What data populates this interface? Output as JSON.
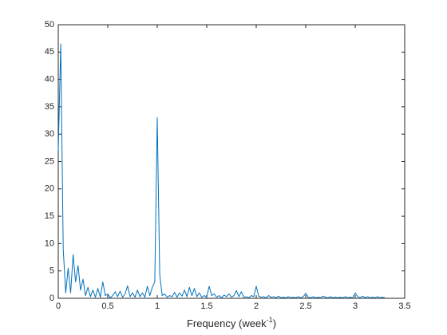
{
  "chart_data": {
    "type": "line",
    "xlabel": [
      "Frequency  (week",
      "-1",
      ")"
    ],
    "x": [
      0,
      0.025,
      0.05,
      0.075,
      0.1,
      0.125,
      0.15,
      0.175,
      0.2,
      0.225,
      0.25,
      0.275,
      0.3,
      0.325,
      0.35,
      0.375,
      0.4,
      0.425,
      0.45,
      0.475,
      0.5,
      0.525,
      0.55,
      0.575,
      0.6,
      0.625,
      0.65,
      0.675,
      0.7,
      0.725,
      0.75,
      0.775,
      0.8,
      0.825,
      0.85,
      0.875,
      0.9,
      0.925,
      0.95,
      0.975,
      1,
      1.025,
      1.05,
      1.075,
      1.1,
      1.125,
      1.15,
      1.175,
      1.2,
      1.225,
      1.25,
      1.275,
      1.3,
      1.325,
      1.35,
      1.375,
      1.4,
      1.425,
      1.45,
      1.475,
      1.5,
      1.525,
      1.55,
      1.575,
      1.6,
      1.625,
      1.65,
      1.675,
      1.7,
      1.725,
      1.75,
      1.775,
      1.8,
      1.825,
      1.85,
      1.875,
      1.9,
      1.925,
      1.95,
      1.975,
      2,
      2.025,
      2.05,
      2.075,
      2.1,
      2.125,
      2.15,
      2.175,
      2.2,
      2.225,
      2.25,
      2.275,
      2.3,
      2.325,
      2.35,
      2.375,
      2.4,
      2.425,
      2.45,
      2.475,
      2.5,
      2.525,
      2.55,
      2.575,
      2.6,
      2.625,
      2.65,
      2.675,
      2.7,
      2.725,
      2.75,
      2.775,
      2.8,
      2.825,
      2.85,
      2.875,
      2.9,
      2.925,
      2.95,
      2.975,
      3,
      3.025,
      3.05,
      3.075,
      3.1,
      3.125,
      3.15,
      3.175,
      3.2,
      3.225,
      3.25,
      3.275,
      3.3
    ],
    "values": [
      27,
      46.5,
      9,
      1,
      5.5,
      1,
      8,
      3,
      6,
      1.5,
      3.5,
      0.5,
      2,
      0.3,
      1.5,
      0.2,
      1.8,
      0.2,
      3,
      0.5,
      0.8,
      0.1,
      0.5,
      1.2,
      0.3,
      1.3,
      0.2,
      0.8,
      2.3,
      0.3,
      1,
      0.2,
      1.5,
      0.3,
      1,
      0.2,
      2.2,
      0.5,
      2,
      3,
      33,
      4.3,
      0.5,
      0.8,
      0.2,
      0.5,
      0.3,
      1.1,
      0.2,
      1,
      0.4,
      1.5,
      0.3,
      2,
      0.5,
      1.8,
      0.3,
      1,
      0.2,
      0.5,
      0.2,
      2.2,
      0.5,
      0.8,
      0.2,
      0.5,
      0.1,
      0.6,
      0.3,
      0.8,
      0.2,
      0.5,
      1.4,
      0.3,
      1.2,
      0.2,
      0.3,
      0.1,
      0.5,
      0.3,
      2.2,
      0.4,
      0.2,
      0.3,
      0.1,
      0.5,
      0.2,
      0.3,
      0.1,
      0.4,
      0.1,
      0.2,
      0.1,
      0.3,
      0.1,
      0.2,
      0.1,
      0.3,
      0.1,
      0.3,
      0.9,
      0.2,
      0.1,
      0.3,
      0.1,
      0.2,
      0.1,
      0.4,
      0.2,
      0.1,
      0.3,
      0.1,
      0.2,
      0.1,
      0.2,
      0.1,
      0.3,
      0.1,
      0.2,
      0.1,
      1,
      0.3,
      0.1,
      0.4,
      0.1,
      0.3,
      0.1,
      0.2,
      0.1,
      0.3,
      0.1,
      0.2,
      0.1
    ],
    "color": "#0072bd",
    "xlim": [
      0,
      3.5
    ],
    "xticks": [
      0,
      0.5,
      1,
      1.5,
      2,
      2.5,
      3,
      3.5
    ],
    "ylim": [
      0,
      50
    ],
    "yticks": [
      0,
      5,
      10,
      15,
      20,
      25,
      30,
      35,
      40,
      45,
      50
    ],
    "grid": false
  }
}
